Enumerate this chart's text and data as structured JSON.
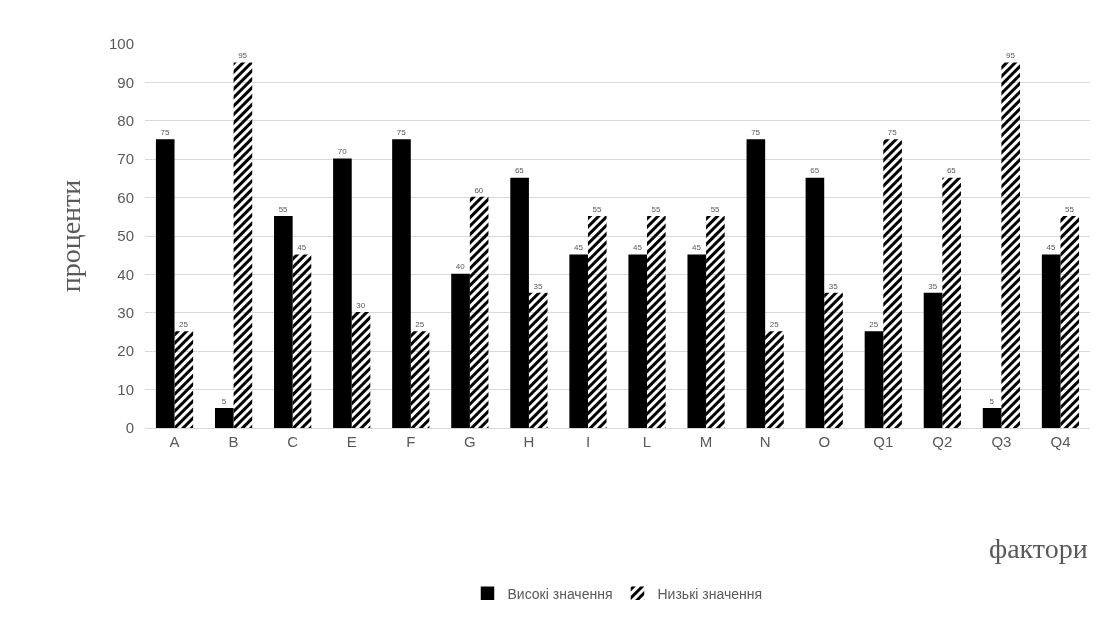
{
  "chart_data": {
    "type": "bar",
    "xlabel": "фактори",
    "ylabel": "проценти",
    "categories": [
      "A",
      "B",
      "C",
      "E",
      "F",
      "G",
      "H",
      "I",
      "L",
      "M",
      "N",
      "O",
      "Q1",
      "Q2",
      "Q3",
      "Q4"
    ],
    "series": [
      {
        "name": "Високі значення",
        "color": "#000000",
        "values": [
          75,
          5,
          55,
          70,
          75,
          40,
          65,
          45,
          45,
          45,
          75,
          65,
          25,
          35,
          5,
          45
        ]
      },
      {
        "name": "Низькі значення",
        "color": "#000000",
        "values": [
          25,
          95,
          45,
          30,
          25,
          60,
          35,
          55,
          55,
          55,
          25,
          35,
          75,
          65,
          95,
          55
        ]
      }
    ],
    "ylim": [
      0,
      100
    ],
    "yticks": [
      0,
      10,
      20,
      30,
      40,
      50,
      60,
      70,
      80,
      90,
      100
    ],
    "grid": "y",
    "legend": "bottom",
    "data_labels": true
  }
}
